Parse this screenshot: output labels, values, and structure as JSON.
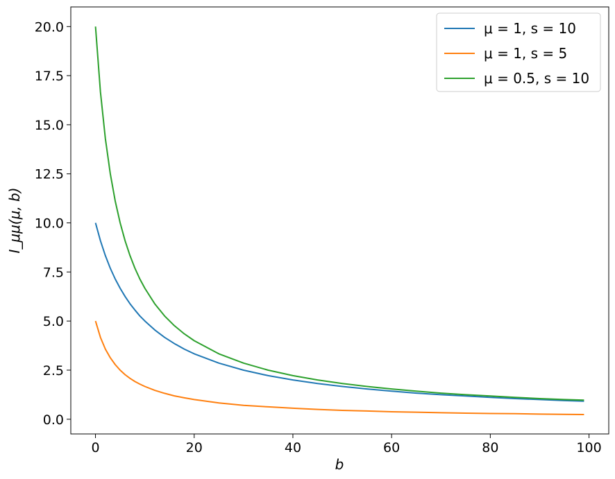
{
  "chart_data": {
    "type": "line",
    "title": "",
    "xlabel": "b",
    "ylabel": "I_μμ(μ, b)",
    "xlim": [
      -5,
      104
    ],
    "ylim": [
      -0.75,
      21
    ],
    "xticks": [
      0,
      20,
      40,
      60,
      80,
      100
    ],
    "xtick_labels": [
      "0",
      "20",
      "40",
      "60",
      "80",
      "100"
    ],
    "yticks": [
      0.0,
      2.5,
      5.0,
      7.5,
      10.0,
      12.5,
      15.0,
      17.5,
      20.0
    ],
    "ytick_labels": [
      "0.0",
      "2.5",
      "5.0",
      "7.5",
      "10.0",
      "12.5",
      "15.0",
      "17.5",
      "20.0"
    ],
    "grid": false,
    "legend_position": "top-right",
    "x": [
      0,
      1,
      2,
      3,
      4,
      5,
      6,
      7,
      8,
      9,
      10,
      12,
      14,
      16,
      18,
      20,
      25,
      30,
      35,
      40,
      45,
      50,
      55,
      60,
      65,
      70,
      75,
      80,
      85,
      90,
      95,
      99
    ],
    "series": [
      {
        "name": "μ = 1, s = 10",
        "color": "#1f77b4",
        "values": [
          10.0,
          9.09,
          8.33,
          7.69,
          7.14,
          6.67,
          6.25,
          5.88,
          5.56,
          5.26,
          5.0,
          4.55,
          4.17,
          3.85,
          3.57,
          3.33,
          2.86,
          2.5,
          2.22,
          2.0,
          1.82,
          1.67,
          1.54,
          1.43,
          1.33,
          1.25,
          1.18,
          1.11,
          1.05,
          1.0,
          0.95,
          0.92
        ]
      },
      {
        "name": "μ = 1, s = 5",
        "color": "#ff7f0e",
        "values": [
          5.0,
          4.17,
          3.57,
          3.13,
          2.78,
          2.5,
          2.27,
          2.08,
          1.92,
          1.79,
          1.67,
          1.47,
          1.32,
          1.19,
          1.09,
          1.0,
          0.83,
          0.71,
          0.63,
          0.56,
          0.5,
          0.45,
          0.42,
          0.38,
          0.36,
          0.33,
          0.31,
          0.29,
          0.28,
          0.26,
          0.25,
          0.24
        ]
      },
      {
        "name": "μ = 0.5, s = 10",
        "color": "#2ca02c",
        "values": [
          20.0,
          16.67,
          14.29,
          12.5,
          11.11,
          10.0,
          9.09,
          8.33,
          7.69,
          7.14,
          6.67,
          5.88,
          5.26,
          4.76,
          4.35,
          4.0,
          3.33,
          2.86,
          2.5,
          2.22,
          2.0,
          1.82,
          1.67,
          1.54,
          1.43,
          1.33,
          1.25,
          1.18,
          1.11,
          1.05,
          1.0,
          0.97
        ]
      }
    ]
  }
}
